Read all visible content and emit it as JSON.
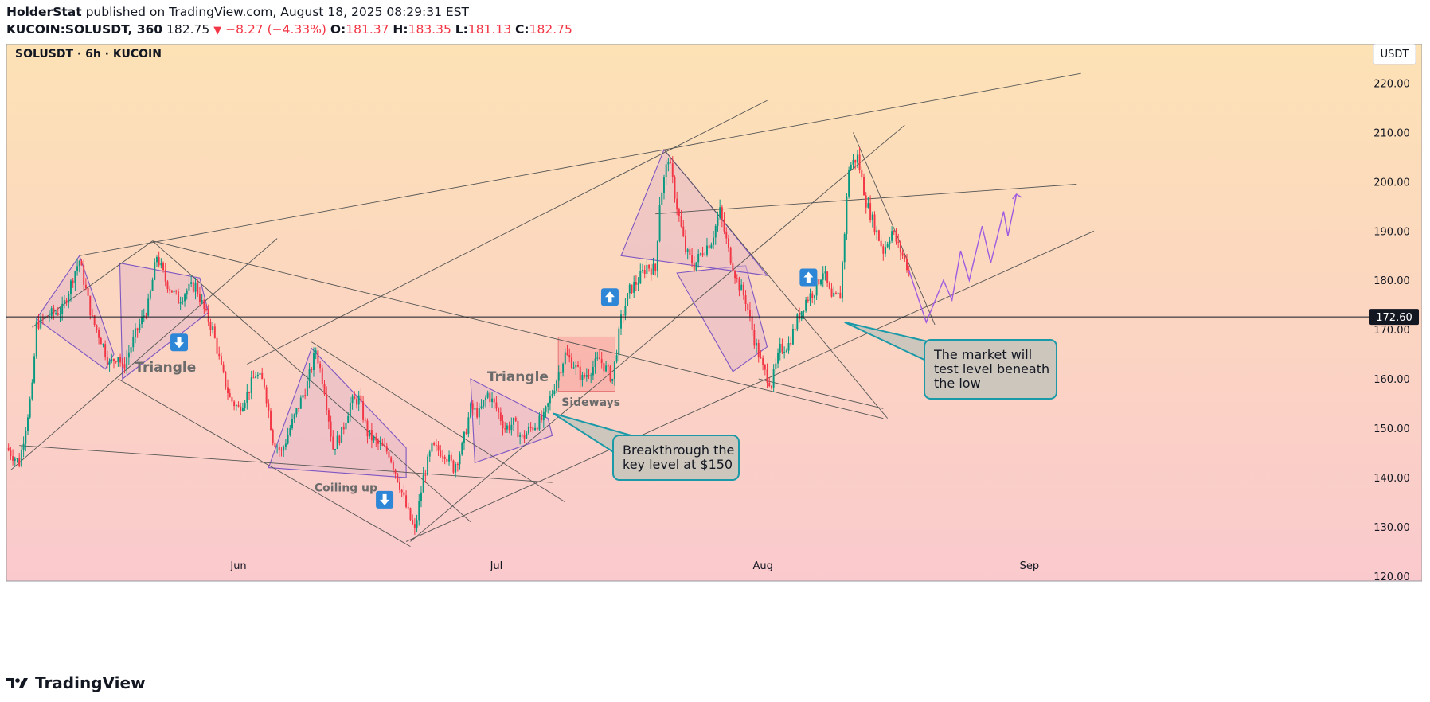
{
  "header": {
    "author": "HolderStat",
    "published_text": "published on TradingView.com, August 18, 2025 08:29:31 EST",
    "symbol_line": "KUCOIN:SOLUSDT, 360",
    "last": "182.75",
    "change": "−8.27 (−4.33%)",
    "open_label": "O:",
    "open": "181.37",
    "high_label": "H:",
    "high": "183.35",
    "low_label": "L:",
    "low": "181.13",
    "close_label": "C:",
    "close": "182.75"
  },
  "chart_data": {
    "type": "candlestick",
    "title": "SOLUSDT · 6h · KUCOIN",
    "currency_button": "USDT",
    "y_ticks": [
      120,
      130,
      140,
      150,
      160,
      170,
      180,
      190,
      200,
      210,
      220
    ],
    "y_tick_labels": [
      "120.00",
      "130.00",
      "140.00",
      "150.00",
      "160.00",
      "170.00",
      "180.00",
      "190.00",
      "200.00",
      "210.00",
      "220.00"
    ],
    "ylim": [
      119,
      228
    ],
    "x_tick_labels": [
      {
        "label": "Jun",
        "day": 27
      },
      {
        "label": "Jul",
        "day": 57
      },
      {
        "label": "Aug",
        "day": 88
      },
      {
        "label": "Sep",
        "day": 119
      }
    ],
    "xlim": [
      0,
      138
    ],
    "price_line": {
      "value": 172.6,
      "label": "172.60"
    },
    "key_prices": [
      {
        "day": 0,
        "price": 146
      },
      {
        "day": 1.5,
        "price": 143
      },
      {
        "day": 3,
        "price": 158
      },
      {
        "day": 3.5,
        "price": 171
      },
      {
        "day": 5,
        "price": 173
      },
      {
        "day": 6.5,
        "price": 174
      },
      {
        "day": 8,
        "price": 182
      },
      {
        "day": 8.5,
        "price": 184
      },
      {
        "day": 10,
        "price": 172
      },
      {
        "day": 11,
        "price": 168
      },
      {
        "day": 12,
        "price": 163
      },
      {
        "day": 13,
        "price": 165
      },
      {
        "day": 13.5,
        "price": 162
      },
      {
        "day": 15,
        "price": 169
      },
      {
        "day": 16.5,
        "price": 175
      },
      {
        "day": 17.5,
        "price": 185
      },
      {
        "day": 18.5,
        "price": 180
      },
      {
        "day": 20,
        "price": 176
      },
      {
        "day": 21,
        "price": 178
      },
      {
        "day": 22,
        "price": 179
      },
      {
        "day": 23,
        "price": 174
      },
      {
        "day": 24,
        "price": 170
      },
      {
        "day": 25,
        "price": 162
      },
      {
        "day": 26,
        "price": 156
      },
      {
        "day": 27,
        "price": 154
      },
      {
        "day": 28,
        "price": 157
      },
      {
        "day": 29,
        "price": 161
      },
      {
        "day": 30,
        "price": 159
      },
      {
        "day": 31,
        "price": 148
      },
      {
        "day": 32,
        "price": 145
      },
      {
        "day": 33,
        "price": 150
      },
      {
        "day": 35,
        "price": 159
      },
      {
        "day": 36,
        "price": 166
      },
      {
        "day": 37,
        "price": 158
      },
      {
        "day": 38,
        "price": 146
      },
      {
        "day": 39,
        "price": 149
      },
      {
        "day": 40,
        "price": 155
      },
      {
        "day": 41,
        "price": 156
      },
      {
        "day": 42,
        "price": 149
      },
      {
        "day": 43,
        "price": 147
      },
      {
        "day": 44.5,
        "price": 145
      },
      {
        "day": 45.5,
        "price": 140
      },
      {
        "day": 46.5,
        "price": 134
      },
      {
        "day": 47.5,
        "price": 129
      },
      {
        "day": 48.5,
        "price": 140
      },
      {
        "day": 49.5,
        "price": 146
      },
      {
        "day": 51,
        "price": 145
      },
      {
        "day": 52,
        "price": 142
      },
      {
        "day": 53,
        "price": 146
      },
      {
        "day": 54,
        "price": 154
      },
      {
        "day": 55,
        "price": 153
      },
      {
        "day": 56,
        "price": 157
      },
      {
        "day": 57,
        "price": 154
      },
      {
        "day": 58,
        "price": 150
      },
      {
        "day": 59,
        "price": 151
      },
      {
        "day": 60,
        "price": 148
      },
      {
        "day": 61,
        "price": 150
      },
      {
        "day": 62.5,
        "price": 152
      },
      {
        "day": 64,
        "price": 160
      },
      {
        "day": 65,
        "price": 165
      },
      {
        "day": 66,
        "price": 163
      },
      {
        "day": 67,
        "price": 160
      },
      {
        "day": 68,
        "price": 162
      },
      {
        "day": 69,
        "price": 164
      },
      {
        "day": 70.5,
        "price": 160
      },
      {
        "day": 71.5,
        "price": 172
      },
      {
        "day": 72.5,
        "price": 178
      },
      {
        "day": 73.5,
        "price": 180
      },
      {
        "day": 74.5,
        "price": 183
      },
      {
        "day": 75.5,
        "price": 182
      },
      {
        "day": 76,
        "price": 196
      },
      {
        "day": 77,
        "price": 205
      },
      {
        "day": 78,
        "price": 195
      },
      {
        "day": 79,
        "price": 186
      },
      {
        "day": 80,
        "price": 183
      },
      {
        "day": 81,
        "price": 186
      },
      {
        "day": 82,
        "price": 188
      },
      {
        "day": 83,
        "price": 194
      },
      {
        "day": 84,
        "price": 186
      },
      {
        "day": 85,
        "price": 180
      },
      {
        "day": 86,
        "price": 176
      },
      {
        "day": 87,
        "price": 168
      },
      {
        "day": 88,
        "price": 162
      },
      {
        "day": 89,
        "price": 159
      },
      {
        "day": 90,
        "price": 166
      },
      {
        "day": 91,
        "price": 167
      },
      {
        "day": 92,
        "price": 172
      },
      {
        "day": 93,
        "price": 176
      },
      {
        "day": 94,
        "price": 178
      },
      {
        "day": 95,
        "price": 182
      },
      {
        "day": 96,
        "price": 176
      },
      {
        "day": 97,
        "price": 177
      },
      {
        "day": 98,
        "price": 203
      },
      {
        "day": 99,
        "price": 205
      },
      {
        "day": 100,
        "price": 196
      },
      {
        "day": 101,
        "price": 191
      },
      {
        "day": 102,
        "price": 186
      },
      {
        "day": 103,
        "price": 190
      },
      {
        "day": 104,
        "price": 186
      },
      {
        "day": 105,
        "price": 182
      }
    ],
    "annotations": {
      "triangle_1": "Triangle",
      "triangle_2": "Triangle",
      "coiling": "Coiling up",
      "sideways": "Sideways",
      "callout_1": [
        "Breakthrough the",
        "key level at $150"
      ],
      "callout_2": [
        "The market will",
        "test level beneath",
        "the low"
      ]
    },
    "colors": {
      "up": "#089981",
      "down": "#f23645",
      "bg_top": "#fde2b5",
      "bg_bottom": "#fac9cd",
      "callout_fill": "#ccc6bc",
      "callout_border": "#1a9aa8",
      "pattern": "#7e57c2",
      "pattern_fill": "#e6b8c8",
      "arrow_badge": "#2e86d6",
      "price_tag": "#131722"
    }
  },
  "footer": {
    "brand": "TradingView"
  }
}
